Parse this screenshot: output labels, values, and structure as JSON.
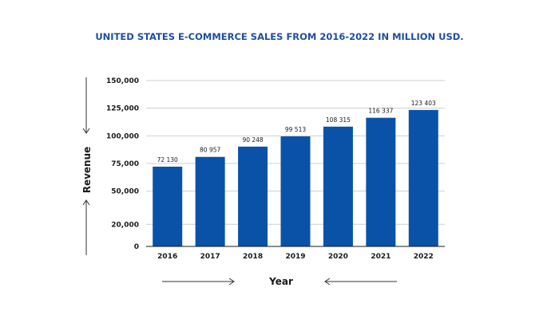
{
  "chart_data": {
    "type": "bar",
    "title": "UNITED STATES E-COMMERCE SALES FROM 2016-2022 IN MILLION USD.",
    "xlabel": "Year",
    "ylabel": "Revenue",
    "categories": [
      "2016",
      "2017",
      "2018",
      "2019",
      "2020",
      "2021",
      "2022"
    ],
    "values": [
      72130,
      80957,
      90248,
      99513,
      108315,
      116337,
      123403
    ],
    "value_labels": [
      "72 130",
      "80 957",
      "90 248",
      "99 513",
      "108 315",
      "116 337",
      "123 403"
    ],
    "yticks": [
      0,
      20000,
      50000,
      75000,
      100000,
      125000,
      150000
    ],
    "ytick_labels": [
      "0",
      "20,000",
      "50,000",
      "75,000",
      "100,000",
      "125,000",
      "150,000"
    ],
    "ylim": [
      0,
      150000
    ],
    "grid": true,
    "legend": null
  },
  "colors": {
    "bar": "#0a52a8",
    "title": "#1f4e9e"
  }
}
